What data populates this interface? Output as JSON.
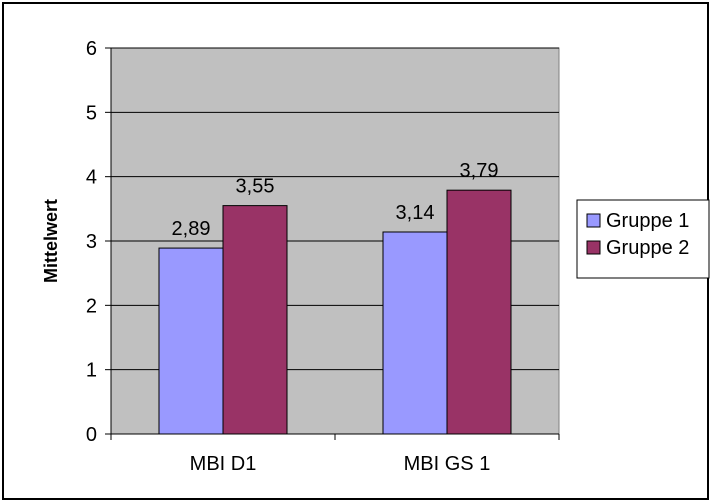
{
  "chart_data": {
    "type": "bar",
    "title": "",
    "xlabel": "",
    "ylabel": "Mittelwert",
    "categories": [
      "MBI D1",
      "MBI GS 1"
    ],
    "series": [
      {
        "name": "Gruppe 1",
        "values": [
          2.89,
          3.14
        ],
        "labels": [
          "2,89",
          "3,14"
        ],
        "color": "#9999ff"
      },
      {
        "name": "Gruppe 2",
        "values": [
          3.55,
          3.79
        ],
        "labels": [
          "3,55",
          "3,79"
        ],
        "color": "#993366"
      }
    ],
    "ylim": [
      0,
      6
    ],
    "yticks": [
      "0",
      "1",
      "2",
      "3",
      "4",
      "5",
      "6"
    ],
    "grid": true,
    "legend_position": "right",
    "plot_background": "#c0c0c0"
  }
}
